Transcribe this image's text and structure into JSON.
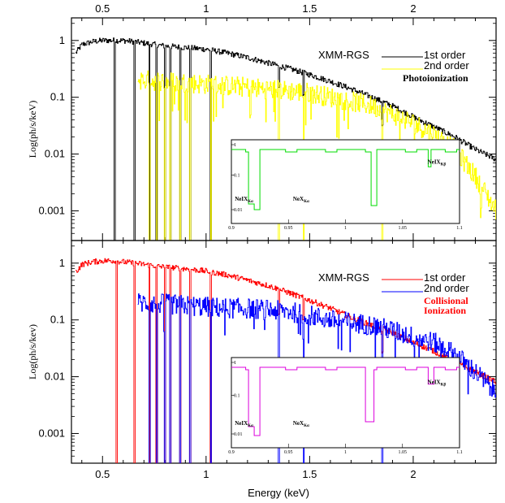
{
  "chart_data": {
    "type": "line",
    "xlabel": "Energy (keV)",
    "xlim": [
      0.35,
      2.4
    ],
    "x_ticks": [
      0.5,
      1,
      1.5,
      2
    ],
    "x_tick_labels": [
      "0.5",
      "1",
      "1.5",
      "2"
    ],
    "y_ticks": [
      0.001,
      0.01,
      0.1,
      1
    ],
    "y_tick_labels": [
      "0.001",
      "0.01",
      "0.1",
      "1"
    ],
    "ylim": [
      0.0003,
      2.5
    ],
    "y_scale": "log",
    "panels": [
      {
        "id": "top",
        "ylabel": "Log(ph/s/keV)",
        "legend": {
          "instrument": "XMM-RGS",
          "first_order_label": "1st order",
          "second_order_label": "2nd order",
          "note_lines": [
            "Photoionization"
          ],
          "note_color": "#000000"
        },
        "series": [
          {
            "name": "1st order",
            "color": "#000000",
            "x": [
              0.37,
              0.4,
              0.45,
              0.5,
              0.55,
              0.6,
              0.65,
              0.7,
              0.8,
              0.9,
              1.0,
              1.1,
              1.2,
              1.3,
              1.4,
              1.5,
              1.6,
              1.7,
              1.8,
              1.9,
              2.0,
              2.1,
              2.2,
              2.3,
              2.4
            ],
            "y": [
              0.6,
              0.85,
              0.95,
              1.0,
              1.0,
              1.0,
              0.95,
              0.9,
              0.8,
              0.75,
              0.7,
              0.6,
              0.5,
              0.4,
              0.32,
              0.25,
              0.19,
              0.14,
              0.1,
              0.07,
              0.045,
              0.03,
              0.02,
              0.012,
              0.008
            ]
          },
          {
            "name": "2nd order",
            "color": "#ffff00",
            "x": [
              0.67,
              0.7,
              0.8,
              0.9,
              1.0,
              1.1,
              1.2,
              1.3,
              1.4,
              1.5,
              1.6,
              1.7,
              1.8,
              1.9,
              2.0,
              2.1,
              2.2,
              2.3,
              2.4
            ],
            "y": [
              0.2,
              0.2,
              0.19,
              0.18,
              0.17,
              0.16,
              0.15,
              0.14,
              0.13,
              0.12,
              0.1,
              0.085,
              0.07,
              0.05,
              0.035,
              0.022,
              0.012,
              0.004,
              0.001
            ]
          }
        ],
        "absorption_lines": [
          0.558,
          0.653,
          0.725,
          0.76,
          0.8,
          0.826,
          0.874,
          0.922,
          1.022,
          1.35,
          1.47,
          1.85
        ],
        "inset": {
          "color": "#00dd00",
          "xlim": [
            0.9,
            1.1
          ],
          "x_ticks": [
            0.9,
            0.95,
            1,
            1.05,
            1.1
          ],
          "x_tick_labels": [
            "0.9",
            "0.95",
            "1",
            "1.05",
            "1.1"
          ],
          "y_tick_labels": [
            "1",
            "0.1",
            "0.01"
          ],
          "labels": [
            {
              "text": "NeIX",
              "sub": "Kα",
              "x": 0.903,
              "pos": "bottom"
            },
            {
              "text": "NeX",
              "sub": "Kα",
              "x": 0.954,
              "pos": "bottom"
            },
            {
              "text": "NeIX",
              "sub": "Kβ",
              "x": 1.072,
              "pos": "mid"
            }
          ]
        }
      },
      {
        "id": "bottom",
        "ylabel": "Log(ph/s/kev)",
        "legend": {
          "instrument": "XMM-RGS",
          "first_order_label": "1st order",
          "second_order_label": "2nd order",
          "note_lines": [
            "Collisional",
            "Ionization"
          ],
          "note_color": "#ff0000"
        },
        "series": [
          {
            "name": "1st order",
            "color": "#ff0000",
            "x": [
              0.37,
              0.4,
              0.45,
              0.5,
              0.55,
              0.6,
              0.65,
              0.7,
              0.8,
              0.9,
              1.0,
              1.1,
              1.2,
              1.3,
              1.4,
              1.5,
              1.6,
              1.7,
              1.8,
              1.9,
              2.0,
              2.1,
              2.2,
              2.3,
              2.4
            ],
            "y": [
              0.7,
              0.95,
              1.05,
              1.1,
              1.1,
              1.05,
              1.0,
              0.95,
              0.85,
              0.8,
              0.72,
              0.62,
              0.5,
              0.4,
              0.3,
              0.22,
              0.16,
              0.11,
              0.08,
              0.06,
              0.04,
              0.028,
              0.018,
              0.012,
              0.008
            ]
          },
          {
            "name": "2nd order",
            "color": "#0000ff",
            "x": [
              0.67,
              0.7,
              0.8,
              0.9,
              1.0,
              1.1,
              1.2,
              1.3,
              1.4,
              1.5,
              1.6,
              1.7,
              1.8,
              1.9,
              2.0,
              2.1,
              2.2,
              2.3,
              2.4
            ],
            "y": [
              0.2,
              0.2,
              0.19,
              0.18,
              0.17,
              0.16,
              0.16,
              0.15,
              0.14,
              0.12,
              0.1,
              0.09,
              0.08,
              0.065,
              0.05,
              0.04,
              0.025,
              0.012,
              0.005
            ]
          }
        ],
        "absorption_lines": [
          0.567,
          0.653,
          0.725,
          0.76,
          0.8,
          0.826,
          0.874,
          0.922,
          1.022,
          1.35,
          1.47,
          1.85
        ],
        "inset": {
          "color": "#dd00dd",
          "xlim": [
            0.9,
            1.1
          ],
          "x_ticks": [
            0.9,
            0.95,
            1,
            1.05,
            1.1
          ],
          "x_tick_labels": [
            "0.9",
            "0.95",
            "1",
            "1.05",
            "1.1"
          ],
          "y_tick_labels": [
            "1",
            "0.1",
            "0.01"
          ],
          "labels": [
            {
              "text": "NeIX",
              "sub": "Kα",
              "x": 0.903,
              "pos": "bottom"
            },
            {
              "text": "NeX",
              "sub": "Kα",
              "x": 0.954,
              "pos": "bottom"
            },
            {
              "text": "NeIX",
              "sub": "Kβ",
              "x": 1.072,
              "pos": "mid"
            }
          ]
        }
      }
    ]
  }
}
